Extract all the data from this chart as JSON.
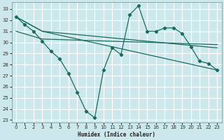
{
  "xlabel": "Humidex (Indice chaleur)",
  "bg_color": "#cde8ec",
  "grid_color": "#ffffff",
  "line_color": "#1a6b5e",
  "xlim": [
    -0.5,
    23.5
  ],
  "ylim": [
    22.8,
    33.6
  ],
  "yticks": [
    23,
    24,
    25,
    26,
    27,
    28,
    29,
    30,
    31,
    32,
    33
  ],
  "xticks": [
    0,
    1,
    2,
    3,
    4,
    5,
    6,
    7,
    8,
    9,
    10,
    11,
    12,
    13,
    14,
    15,
    16,
    17,
    18,
    19,
    20,
    21,
    22,
    23
  ],
  "line_main": {
    "x": [
      0,
      1,
      2,
      3,
      4,
      5,
      6,
      7,
      8,
      9,
      10,
      11,
      12,
      13,
      14,
      15,
      16,
      17,
      18,
      19,
      20,
      21,
      22,
      23
    ],
    "y": [
      32.3,
      31.6,
      31.0,
      30.1,
      29.2,
      28.5,
      27.2,
      25.5,
      23.8,
      23.2,
      27.5,
      29.5,
      28.9,
      32.5,
      33.3,
      31.0,
      31.0,
      31.3,
      31.3,
      30.8,
      29.6,
      28.3,
      28.1,
      27.5
    ]
  },
  "line_a": {
    "x": [
      0,
      3,
      23
    ],
    "y": [
      32.3,
      31.0,
      27.5
    ]
  },
  "line_b": {
    "x": [
      0,
      3,
      23
    ],
    "y": [
      32.3,
      31.0,
      29.5
    ]
  },
  "line_c": {
    "x": [
      0,
      3,
      23
    ],
    "y": [
      31.0,
      30.3,
      29.8
    ]
  }
}
